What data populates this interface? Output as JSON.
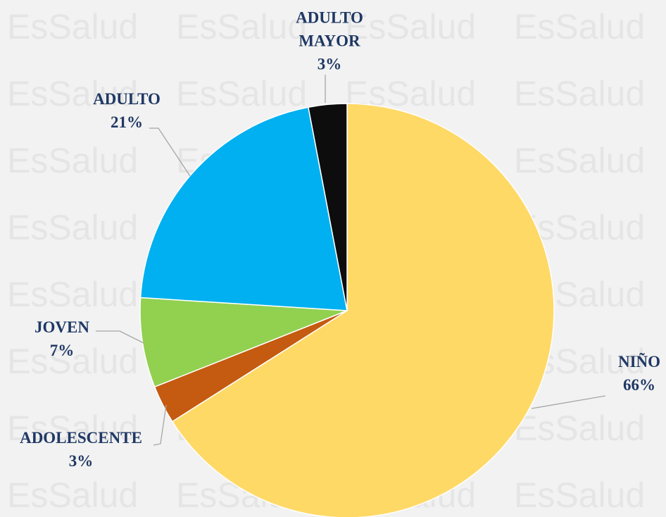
{
  "watermark": "EsSalud",
  "chart_data": {
    "type": "pie",
    "categories": [
      "NIÑO",
      "ADOLESCENTE",
      "JOVEN",
      "ADULTO",
      "ADULTO MAYOR"
    ],
    "values": [
      66,
      3,
      7,
      21,
      3
    ],
    "value_labels": [
      "66%",
      "3%",
      "7%",
      "21%",
      "3%"
    ],
    "colors": [
      "#ffd966",
      "#c55a11",
      "#92d050",
      "#00b0f0",
      "#0d0d0d"
    ]
  }
}
